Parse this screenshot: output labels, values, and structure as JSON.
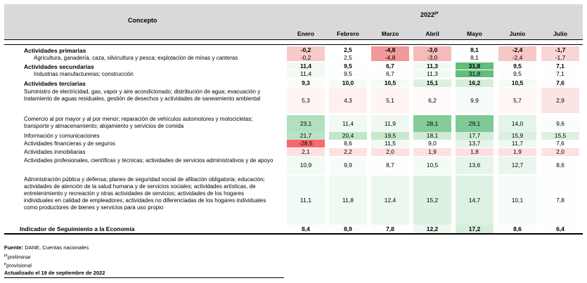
{
  "header": {
    "concepto_label": "Concepto",
    "year": "2022",
    "year_mark": "pr",
    "months": [
      "Enero",
      "Febrero",
      "Marzo",
      "Abril",
      "Mayo",
      "Junio",
      "Julio"
    ]
  },
  "rows": [
    {
      "label": "Actividades primarias",
      "values": [
        "-0,2",
        "2,5",
        "-4,8",
        "-3,0",
        "8,1",
        "-2,4",
        "-1,7"
      ],
      "colors": [
        "#f8cbcb",
        "#ffffff",
        "#f29a9a",
        "#f6baba",
        "#fdfefd",
        "#f7c6c6",
        "#f9d6d6"
      ]
    },
    {
      "label": "Agricultura, ganadería, caza, silvicultura y pesca; explotación de minas y canteras",
      "values": [
        "-0,2",
        "2,5",
        "-4,8",
        "-3,0",
        "8,1",
        "-2,4",
        "-1,7"
      ],
      "colors": [
        "#f8cbcb",
        "#ffffff",
        "#f29a9a",
        "#f6baba",
        "#fdfefd",
        "#f7c6c6",
        "#f9d6d6"
      ]
    },
    {
      "label": "Actividades secundarias",
      "values": [
        "11,4",
        "9,5",
        "6,7",
        "11,3",
        "31,8",
        "9,5",
        "7,1"
      ],
      "colors": [
        "#f0faf3",
        "#fcfefc",
        "#fffefe",
        "#f0faf3",
        "#63be7b",
        "#fcfefc",
        "#fffefe"
      ]
    },
    {
      "label": "Industrias manufactureras; construcción",
      "values": [
        "11,4",
        "9,5",
        "6,7",
        "11,3",
        "31,8",
        "9,5",
        "7,1"
      ],
      "colors": [
        "#f0faf3",
        "#fcfefc",
        "#fffefe",
        "#f0faf3",
        "#63be7b",
        "#fcfefc",
        "#fffefe"
      ]
    },
    {
      "label": "Actividades terciarias",
      "values": [
        "9,3",
        "10,0",
        "10,5",
        "15,1",
        "16,2",
        "10,5",
        "7,6"
      ],
      "colors": [
        "#fbfdfb",
        "#f6fbf7",
        "#f3fbf5",
        "#dcf1e2",
        "#d4eedb",
        "#f3fbf5",
        "#fffefe"
      ]
    },
    {
      "label": "Suministro de electricidad, gas, vapor y aire acondicionado; distribución de agua; evacuación y tratamiento de aguas residuales, gestión de desechos y actividades de saneamiento ambiental",
      "values": [
        "5,3",
        "4,3",
        "5,1",
        "6,2",
        "9,9",
        "5,7",
        "2,9"
      ],
      "colors": [
        "#fff5f5",
        "#fef0f0",
        "#fff4f4",
        "#fff9f9",
        "#f8fcf9",
        "#fff6f6",
        "#fde4e4"
      ]
    },
    {
      "label": "Comercio al por mayor y al por menor; reparación de vehículos automotores y motocicletas; transporte y almacenamiento; alojamiento y servicios de comida",
      "values": [
        "23,1",
        "11,4",
        "11,9",
        "28,1",
        "29,1",
        "14,0",
        "9,6"
      ],
      "colors": [
        "#b1e0be",
        "#f0faf3",
        "#eef8f1",
        "#85cc98",
        "#7ec995",
        "#e3f4e8",
        "#fbfdfc"
      ]
    },
    {
      "label": "Información y comunicaciones",
      "values": [
        "21,7",
        "20,4",
        "19,5",
        "18,1",
        "17,7",
        "15,9",
        "15,5"
      ],
      "colors": [
        "#b9e3c4",
        "#c1e6cb",
        "#c6e8cf",
        "#cfebd6",
        "#d1edd9",
        "#dbf0e1",
        "#ddf1e3"
      ]
    },
    {
      "label": "Actividades financieras y de seguros",
      "values": [
        "-28,5",
        "8,6",
        "11,5",
        "9,0",
        "13,7",
        "11,7",
        "7,6"
      ],
      "colors": [
        "#f8696b",
        "#fdfefd",
        "#f0f9f2",
        "#fdfefd",
        "#e5f5ea",
        "#eff9f2",
        "#fffefe"
      ]
    },
    {
      "label": "Actividades inmobiliarias",
      "values": [
        "2,1",
        "2,2",
        "2,0",
        "1,9",
        "1,8",
        "1,9",
        "2,0"
      ],
      "colors": [
        "#fde0e0",
        "#fde1e1",
        "#fde0e0",
        "#fde0e0",
        "#fddfdf",
        "#fde0e0",
        "#fde0e0"
      ]
    },
    {
      "label": "Actividades profesionales, científicas y técnicas; actividades de servicios administrativos y de apoyo",
      "values": [
        "10,9",
        "9,9",
        "8,7",
        "10,5",
        "13,6",
        "12,7",
        "8,6"
      ],
      "colors": [
        "#f2faf4",
        "#f8fcf9",
        "#fdfefd",
        "#f3fbf5",
        "#e5f5ea",
        "#e9f6ed",
        "#fdfefd"
      ]
    },
    {
      "label": "Administración pública y defensa; planes de seguridad social de afiliación obligatoria; educación; actividades de atención de la salud humana y de servicios sociales; actividades artísticas, de entretenimiento y recreación y otras actividades de servicios; actividades de los hogares individuales en calidad de empleadores; actividades no diferenciadas de los hogares individuales como productores de bienes y servicios para uso propio",
      "values": [
        "11,1",
        "11,8",
        "12,4",
        "15,2",
        "14,7",
        "10,1",
        "7,8"
      ],
      "colors": [
        "#f1faf4",
        "#eef9f1",
        "#ebf7ef",
        "#dcf1e2",
        "#def2e4",
        "#f7fcf8",
        "#fffefe"
      ]
    },
    {
      "label": "Indicador de Seguimiento a la Economía",
      "values": [
        "8,4",
        "8,9",
        "7,8",
        "12,2",
        "17,2",
        "8,6",
        "6,4"
      ],
      "colors": [
        "#fefefe",
        "#fcfefd",
        "#fffefe",
        "#ecf8f0",
        "#d5eedc",
        "#fdfefd",
        "#fffdfd"
      ]
    }
  ],
  "footer": {
    "source_label": "Fuente:",
    "source_text": "DANE, Cuentas nacionales",
    "pr_mark": "pr",
    "pr_text": "preliminar",
    "p_mark": "p",
    "p_text": "provisional",
    "updated": "Actualizado el 19 de septiembre de 2022"
  }
}
